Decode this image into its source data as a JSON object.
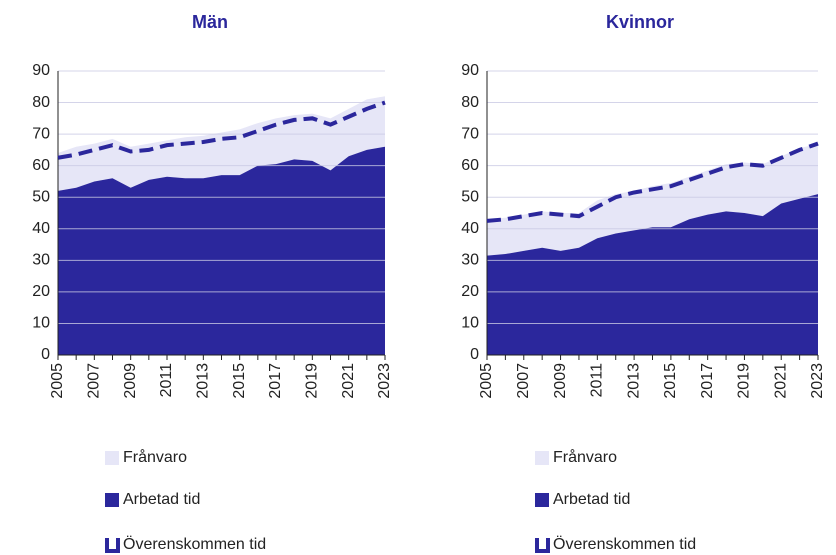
{
  "chart_data": [
    {
      "type": "area",
      "title": "Män",
      "stacked": true,
      "x": [
        2005,
        2006,
        2007,
        2008,
        2009,
        2010,
        2011,
        2012,
        2013,
        2014,
        2015,
        2016,
        2017,
        2018,
        2019,
        2020,
        2021,
        2022,
        2023
      ],
      "series": [
        {
          "name": "Frånvaro",
          "style": "area",
          "color": "#e6e6f7",
          "values": [
            12,
            13,
            12,
            12.5,
            13,
            11.5,
            11.5,
            13,
            13.5,
            13.5,
            14.5,
            13.5,
            14.5,
            14,
            15,
            16.5,
            15,
            16,
            16
          ]
        },
        {
          "name": "Arbetad tid",
          "style": "area",
          "color": "#2b279c",
          "values": [
            52,
            53,
            55,
            56,
            53,
            55.5,
            56.5,
            56,
            56,
            57,
            57,
            60,
            60.5,
            62,
            61.5,
            58.5,
            63,
            65,
            66
          ]
        },
        {
          "name": "Överenskommen tid",
          "style": "dashed-line",
          "color": "#2b279c",
          "values": [
            62.5,
            63.5,
            65,
            66.5,
            64.5,
            65,
            66.5,
            67,
            67.5,
            68.5,
            69,
            71,
            73,
            74.5,
            75,
            73,
            75.5,
            78,
            80
          ]
        }
      ],
      "xlim": [
        2005,
        2023
      ],
      "xticks": [
        2005,
        2007,
        2009,
        2011,
        2013,
        2015,
        2017,
        2019,
        2021,
        2023
      ],
      "ylim": [
        0,
        90
      ],
      "yticks": [
        0,
        10,
        20,
        30,
        40,
        50,
        60,
        70,
        80,
        90
      ],
      "grid": true
    },
    {
      "type": "area",
      "title": "Kvinnor",
      "stacked": true,
      "x": [
        2005,
        2006,
        2007,
        2008,
        2009,
        2010,
        2011,
        2012,
        2013,
        2014,
        2015,
        2016,
        2017,
        2018,
        2019,
        2020,
        2021,
        2022,
        2023
      ],
      "series": [
        {
          "name": "Frånvaro",
          "style": "area",
          "color": "#e6e6f7",
          "values": [
            11.5,
            11.5,
            11.5,
            11.5,
            12,
            11,
            12,
            12.5,
            12.5,
            13,
            14,
            13.5,
            14,
            15,
            16,
            16.5,
            15,
            16,
            16
          ]
        },
        {
          "name": "Arbetad tid",
          "style": "area",
          "color": "#2b279c",
          "values": [
            31.5,
            32,
            33,
            34,
            33,
            34,
            37,
            38.5,
            39.5,
            40.5,
            40.5,
            43,
            44.5,
            45.5,
            45,
            44,
            48,
            49.5,
            51
          ]
        },
        {
          "name": "Överenskommen tid",
          "style": "dashed-line",
          "color": "#2b279c",
          "values": [
            42.5,
            43,
            44,
            45,
            44.5,
            44,
            47,
            50,
            51.5,
            52.5,
            53.5,
            55.5,
            57.5,
            59.5,
            60.5,
            60,
            62.5,
            65,
            67
          ]
        }
      ],
      "xlim": [
        2005,
        2023
      ],
      "xticks": [
        2005,
        2007,
        2009,
        2011,
        2013,
        2015,
        2017,
        2019,
        2021,
        2023
      ],
      "ylim": [
        0,
        90
      ],
      "yticks": [
        0,
        10,
        20,
        30,
        40,
        50,
        60,
        70,
        80,
        90
      ],
      "grid": true
    }
  ]
}
